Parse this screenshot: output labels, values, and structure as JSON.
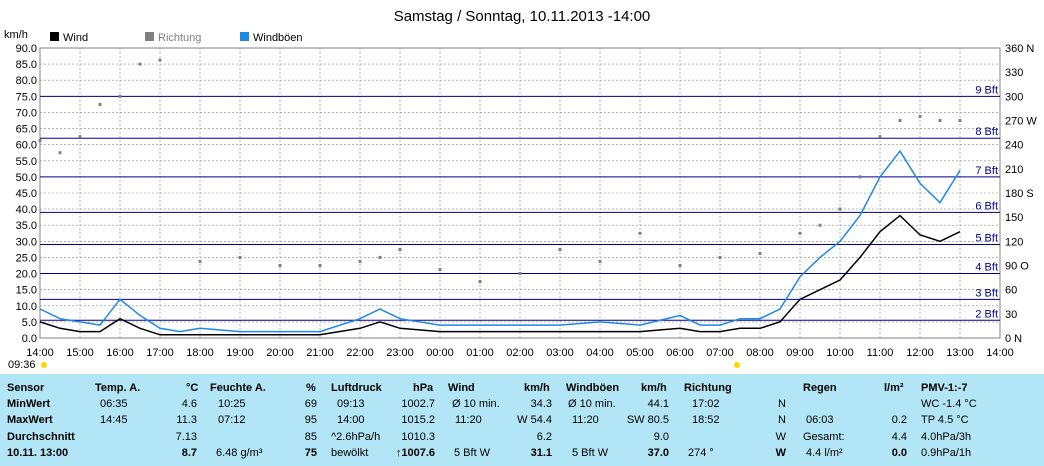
{
  "title": "Samstag / Sonntag, 10.11.2013  -14:00",
  "left_unit": "km/h",
  "right_unit_labels": [
    "360 N",
    "330",
    "300",
    "270 W",
    "240",
    "210",
    "180 S",
    "150",
    "120",
    "90 O",
    "60",
    "30",
    "0 N"
  ],
  "legend": [
    {
      "label": "Wind",
      "color": "#000000"
    },
    {
      "label": "Richtung",
      "color": "#808080"
    },
    {
      "label": "Windböen",
      "color": "#1e88e5"
    }
  ],
  "sunrise_label": "09:36",
  "chart_data": {
    "type": "line",
    "title": "Samstag / Sonntag, 10.11.2013  -14:00",
    "ylabel": "km/h",
    "ylim": [
      0,
      90
    ],
    "y_ticks": [
      "0.0",
      "5.0",
      "10.0",
      "15.0",
      "20.0",
      "25.0",
      "30.0",
      "35.0",
      "40.0",
      "45.0",
      "50.0",
      "55.0",
      "60.0",
      "65.0",
      "70.0",
      "75.0",
      "80.0",
      "85.0",
      "90.0"
    ],
    "x_ticks": [
      "14:00",
      "15:00",
      "16:00",
      "17:00",
      "18:00",
      "19:00",
      "20:00",
      "21:00",
      "22:00",
      "23:00",
      "00:00",
      "01:00",
      "02:00",
      "03:00",
      "04:00",
      "05:00",
      "06:00",
      "07:00",
      "08:00",
      "09:00",
      "10:00",
      "11:00",
      "12:00",
      "13:00",
      "14:00"
    ],
    "beaufort": [
      {
        "label": "2 Bft",
        "kmh": 5.5
      },
      {
        "label": "3 Bft",
        "kmh": 12
      },
      {
        "label": "4 Bft",
        "kmh": 20
      },
      {
        "label": "5 Bft",
        "kmh": 29
      },
      {
        "label": "6 Bft",
        "kmh": 39
      },
      {
        "label": "7 Bft",
        "kmh": 50
      },
      {
        "label": "8 Bft",
        "kmh": 62
      },
      {
        "label": "9 Bft",
        "kmh": 75
      }
    ],
    "y2lim": [
      0,
      360
    ],
    "series": [
      {
        "name": "Wind",
        "hours": [
          0,
          0.5,
          1,
          1.5,
          2,
          2.5,
          3,
          3.5,
          4,
          5,
          6,
          7,
          8,
          8.5,
          9,
          10,
          11,
          12,
          13,
          14,
          15,
          16,
          16.5,
          17,
          17.5,
          18,
          18.5,
          19,
          19.5,
          20,
          20.5,
          21,
          21.5,
          22,
          22.5,
          23
        ],
        "values": [
          5,
          3,
          2,
          2,
          6,
          3,
          1,
          1,
          1,
          1,
          1,
          1,
          3,
          5,
          3,
          2,
          2,
          2,
          2,
          2,
          2,
          3,
          2,
          2,
          3,
          3,
          5,
          12,
          15,
          18,
          25,
          33,
          38,
          32,
          30,
          33
        ]
      },
      {
        "name": "Windböen",
        "hours": [
          0,
          0.5,
          1,
          1.5,
          2,
          2.5,
          3,
          3.5,
          4,
          5,
          6,
          7,
          8,
          8.5,
          9,
          10,
          11,
          12,
          13,
          14,
          15,
          16,
          16.5,
          17,
          17.5,
          18,
          18.5,
          19,
          19.5,
          20,
          20.5,
          21,
          21.5,
          22,
          22.5,
          23
        ],
        "values": [
          9,
          6,
          5,
          4,
          12,
          7,
          3,
          2,
          3,
          2,
          2,
          2,
          6,
          9,
          6,
          4,
          4,
          4,
          4,
          5,
          4,
          7,
          4,
          4,
          6,
          6,
          9,
          19,
          25,
          30,
          38,
          50,
          58,
          48,
          42,
          52
        ]
      },
      {
        "name": "Richtung",
        "hours": [
          0,
          0.5,
          1,
          1.5,
          2,
          2.5,
          3,
          4,
          5,
          6,
          7,
          8,
          8.5,
          9,
          10,
          11,
          12,
          13,
          14,
          15,
          16,
          17,
          18,
          19,
          19.5,
          20,
          20.5,
          21,
          21.5,
          22,
          22.5,
          23
        ],
        "values": [
          245,
          230,
          250,
          290,
          300,
          340,
          345,
          95,
          100,
          90,
          90,
          95,
          100,
          110,
          85,
          70,
          80,
          110,
          95,
          130,
          90,
          100,
          105,
          130,
          140,
          160,
          200,
          250,
          270,
          275,
          270,
          270
        ]
      }
    ]
  },
  "panel": {
    "rows": [
      "Sensor",
      "MinWert",
      "MaxWert",
      "Durchschnitt",
      "10.11. 13:00"
    ],
    "temp": {
      "header": "Temp. A.",
      "unit": "°C",
      "min_time": "06:35",
      "min": "4.6",
      "max_time": "14:45",
      "max": "11.3",
      "avg": "7.13",
      "cur": "8.7"
    },
    "hum": {
      "header": "Feuchte A.",
      "unit": "%",
      "min_time": "10:25",
      "min": "69",
      "max_time": "07:12",
      "max": "95",
      "avg": "85",
      "abs": "6.48 g/m³",
      "cur": "75"
    },
    "press": {
      "header": "Luftdruck",
      "unit": "hPa",
      "min_time": "09:13",
      "min": "1002.7",
      "max_time": "14:00",
      "max": "1015.2",
      "trend": "^2.6hPa/h",
      "avg": "1010.3",
      "desc": "bewölkt",
      "cur": "↑1007.6"
    },
    "wind": {
      "header": "Wind",
      "unit": "km/h",
      "avg10_label": "Ø 10 min.",
      "avg10": "34.3",
      "max_time": "11:20",
      "max": "W 54.4",
      "avg": "6.2",
      "bft": "5 Bft W",
      "cur": "31.1"
    },
    "gust": {
      "header": "Windböen",
      "unit": "km/h",
      "avg10_label": "Ø 10 min.",
      "avg10": "44.1",
      "max_time": "11:20",
      "max": "SW 80.5",
      "avg": "9.0",
      "bft": "5 Bft W",
      "cur": "37.0"
    },
    "dir": {
      "header": "Richtung",
      "t1": "17:02",
      "v1": "N",
      "t2": "18:52",
      "v2": "N",
      "avg": "W",
      "cur_deg": "274 °",
      "cur": "W"
    },
    "rain": {
      "header": "Regen",
      "unit": "l/m²",
      "max_time": "06:03",
      "max": "0.2",
      "total_label": "Gesamt:",
      "total": "4.4",
      "cur_desc": "4.4 l/m²",
      "cur": "0.0"
    },
    "pmv": {
      "header": "PMV-1:-7",
      "wc": "WC -1.4 °C",
      "tp": "TP 4.5 °C",
      "r1": "4.0hPa/3h",
      "r2": "0.9hPa/1h"
    }
  }
}
